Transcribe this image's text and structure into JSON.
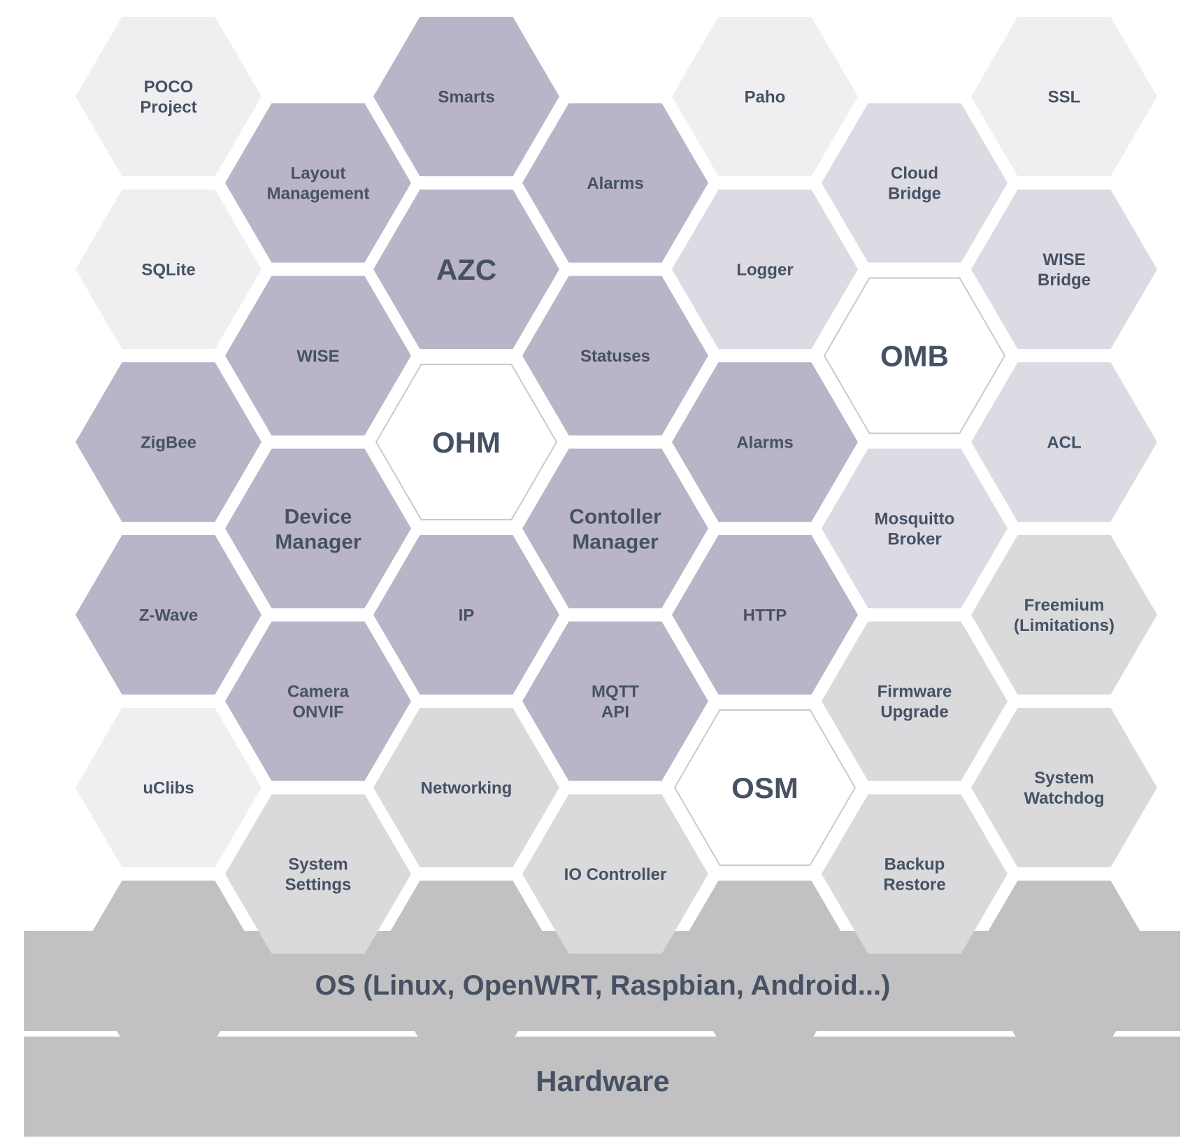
{
  "colors": {
    "core": "#bab4c8",
    "module": "#dcdae2",
    "utility": "#dadadc",
    "library": "#efeff1",
    "primary": "#ffffff",
    "primary_border": "#c9c9cd",
    "platform": "#c1c1c3",
    "text": "#465264"
  },
  "hexes": [
    {
      "id": "poco-project",
      "lines": [
        "POCO",
        "Project"
      ],
      "kind": "library"
    },
    {
      "id": "smarts",
      "lines": [
        "Smarts"
      ],
      "kind": "core"
    },
    {
      "id": "paho",
      "lines": [
        "Paho"
      ],
      "kind": "library"
    },
    {
      "id": "ssl",
      "lines": [
        "SSL"
      ],
      "kind": "library"
    },
    {
      "id": "layout-management",
      "lines": [
        "Layout",
        "Management"
      ],
      "kind": "core"
    },
    {
      "id": "alarms-top",
      "lines": [
        "Alarms"
      ],
      "kind": "core"
    },
    {
      "id": "cloud-bridge",
      "lines": [
        "Cloud",
        "Bridge"
      ],
      "kind": "module"
    },
    {
      "id": "sqlite",
      "lines": [
        "SQLite"
      ],
      "kind": "library"
    },
    {
      "id": "azc",
      "lines": [
        "AZC"
      ],
      "kind": "core",
      "emphasis": true
    },
    {
      "id": "logger",
      "lines": [
        "Logger"
      ],
      "kind": "module"
    },
    {
      "id": "wise-bridge",
      "lines": [
        "WISE",
        "Bridge"
      ],
      "kind": "module"
    },
    {
      "id": "wise",
      "lines": [
        "WISE"
      ],
      "kind": "core"
    },
    {
      "id": "statuses",
      "lines": [
        "Statuses"
      ],
      "kind": "core"
    },
    {
      "id": "omb",
      "lines": [
        "OMB"
      ],
      "kind": "primary",
      "emphasis": true
    },
    {
      "id": "zigbee",
      "lines": [
        "ZigBee"
      ],
      "kind": "core"
    },
    {
      "id": "ohm",
      "lines": [
        "OHM"
      ],
      "kind": "primary",
      "emphasis": true
    },
    {
      "id": "alarms-mid",
      "lines": [
        "Alarms"
      ],
      "kind": "core"
    },
    {
      "id": "acl",
      "lines": [
        "ACL"
      ],
      "kind": "module"
    },
    {
      "id": "device-manager",
      "lines": [
        "Device",
        "Manager"
      ],
      "kind": "core",
      "large": true
    },
    {
      "id": "contoller-manager",
      "lines": [
        "Contoller",
        "Manager"
      ],
      "kind": "core",
      "large": true
    },
    {
      "id": "mosquitto-broker",
      "lines": [
        "Mosquitto",
        "Broker"
      ],
      "kind": "module"
    },
    {
      "id": "z-wave",
      "lines": [
        "Z-Wave"
      ],
      "kind": "core"
    },
    {
      "id": "ip",
      "lines": [
        "IP"
      ],
      "kind": "core"
    },
    {
      "id": "http",
      "lines": [
        "HTTP"
      ],
      "kind": "core"
    },
    {
      "id": "freemium",
      "lines": [
        "Freemium",
        "(Limitations)"
      ],
      "kind": "utility"
    },
    {
      "id": "camera-onvif",
      "lines": [
        "Camera",
        "ONVIF"
      ],
      "kind": "core"
    },
    {
      "id": "mqtt-api",
      "lines": [
        "MQTT",
        "API"
      ],
      "kind": "core"
    },
    {
      "id": "firmware-upgrade",
      "lines": [
        "Firmware",
        "Upgrade"
      ],
      "kind": "utility"
    },
    {
      "id": "uclibs",
      "lines": [
        "uClibs"
      ],
      "kind": "library"
    },
    {
      "id": "networking",
      "lines": [
        "Networking"
      ],
      "kind": "utility"
    },
    {
      "id": "osm",
      "lines": [
        "OSM"
      ],
      "kind": "primary",
      "emphasis": true
    },
    {
      "id": "system-watchdog",
      "lines": [
        "System",
        "Watchdog"
      ],
      "kind": "utility"
    },
    {
      "id": "system-settings",
      "lines": [
        "System",
        "Settings"
      ],
      "kind": "utility"
    },
    {
      "id": "io-controller",
      "lines": [
        "IO Controller"
      ],
      "kind": "utility"
    },
    {
      "id": "backup-restore",
      "lines": [
        "Backup",
        "Restore"
      ],
      "kind": "utility"
    }
  ],
  "layers": {
    "os": "OS (Linux, OpenWRT, Raspbian, Android...)",
    "hardware": "Hardware"
  }
}
